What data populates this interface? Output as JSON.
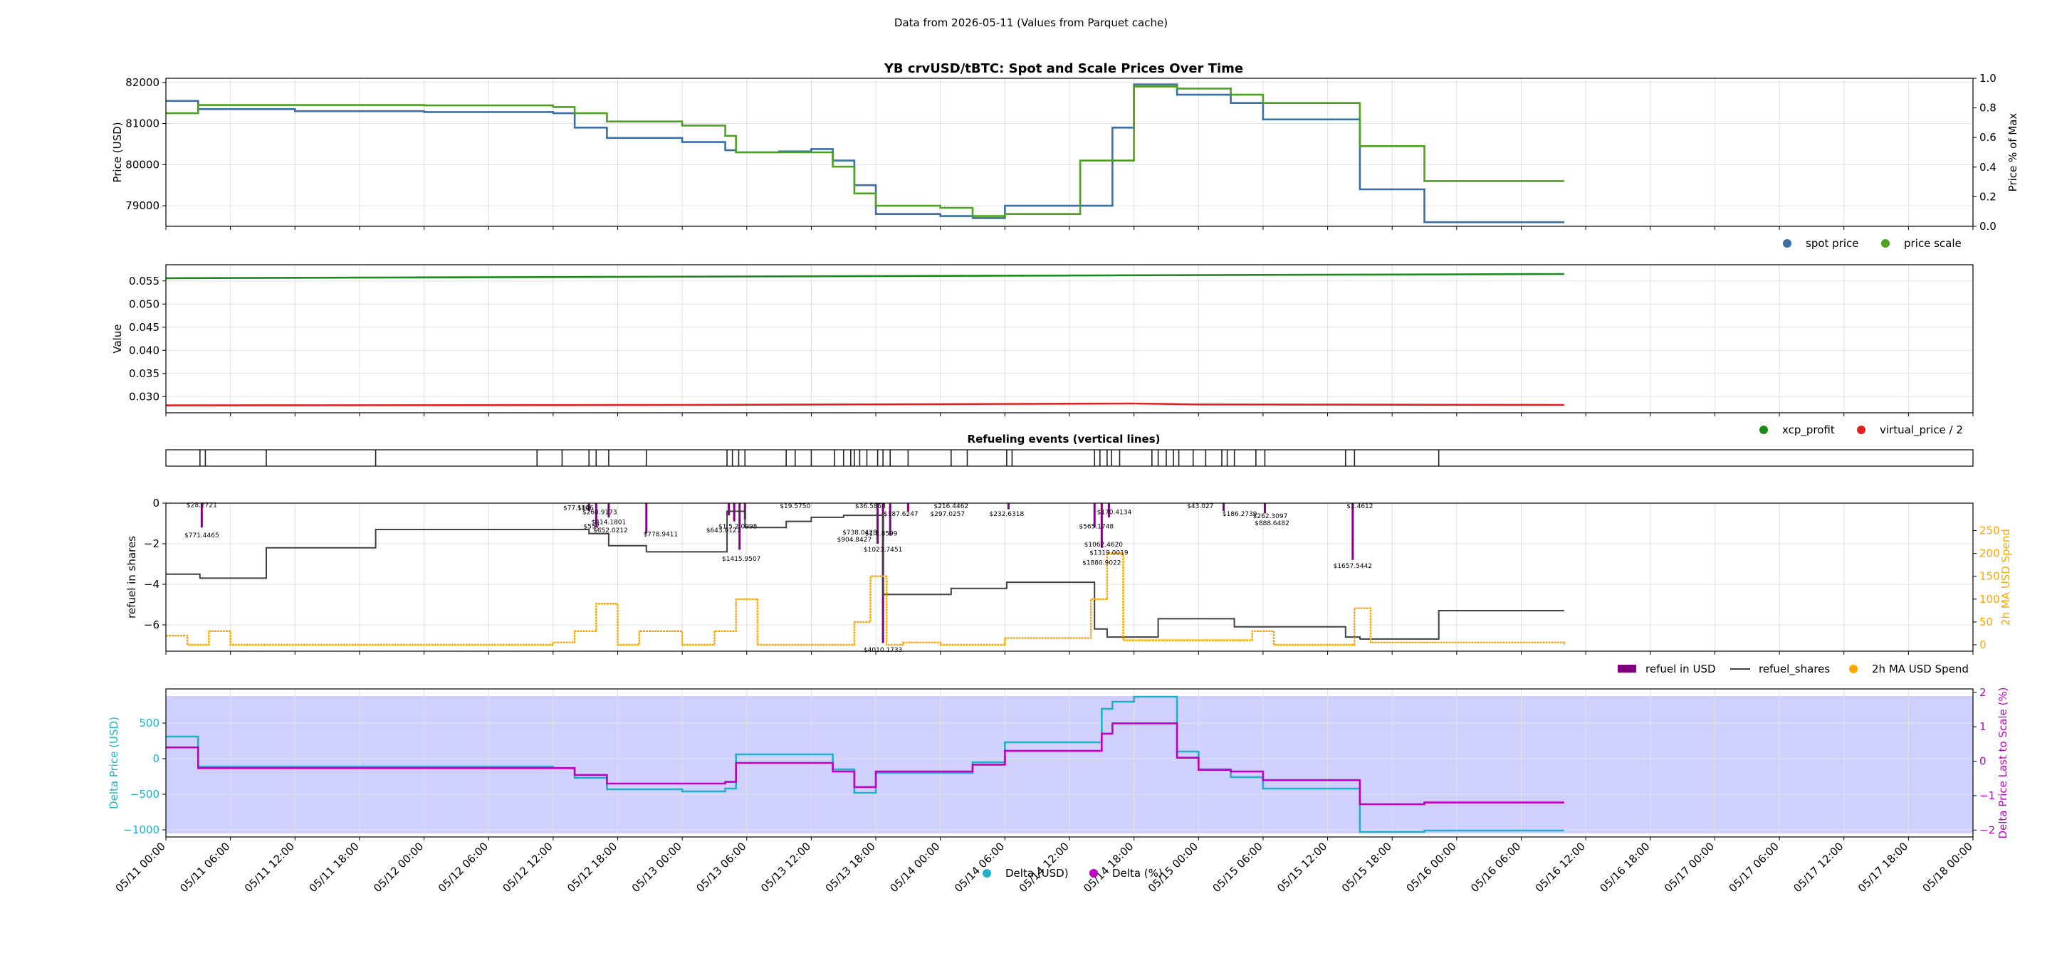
{
  "header": {
    "subtitle": "Data from 2026-05-11 (Values from Parquet cache)"
  },
  "colors": {
    "spot": "#3a6ea5",
    "scale": "#4ca21f",
    "xcp": "#1a8a1a",
    "virtual": "#e02020",
    "refuel_usd": "#800080",
    "refuel_shares": "#404040",
    "ma": "#ffa500",
    "delta_usd": "#20b0c8",
    "delta_pct": "#c000c0",
    "band": "#c8c8ff"
  },
  "x_axis": {
    "start": "2026-05-11 00:00",
    "end": "2026-05-18 00:00",
    "ticks": [
      "05/11 00:00",
      "05/11 06:00",
      "05/11 12:00",
      "05/11 18:00",
      "05/12 00:00",
      "05/12 06:00",
      "05/12 12:00",
      "05/12 18:00",
      "05/13 00:00",
      "05/13 06:00",
      "05/13 12:00",
      "05/13 18:00",
      "05/14 00:00",
      "05/14 06:00",
      "05/14 12:00",
      "05/14 18:00",
      "05/15 00:00",
      "05/15 06:00",
      "05/15 12:00",
      "05/15 18:00",
      "05/16 00:00",
      "05/16 06:00",
      "05/16 12:00",
      "05/16 18:00",
      "05/17 00:00",
      "05/17 06:00",
      "05/17 12:00",
      "05/17 18:00",
      "05/18 00:00"
    ]
  },
  "chart_data": [
    {
      "type": "line",
      "title": "YB crvUSD/tBTC: Spot and Scale Prices Over Time",
      "ylabel": "Price (USD)",
      "y2label": "Price % of Max",
      "ylim": [
        78500,
        82100
      ],
      "yticks": [
        79000,
        80000,
        81000,
        82000
      ],
      "y2ticks": [
        "0.0",
        "0.2",
        "0.4",
        "0.6",
        "0.8",
        "1.0"
      ],
      "legend": "bottom-right",
      "series": [
        {
          "name": "spot price",
          "style": "step",
          "x": [
            "2026-05-11 00:00",
            "2026-05-11 03:00",
            "2026-05-11 12:00",
            "2026-05-12 00:00",
            "2026-05-12 12:00",
            "2026-05-12 14:00",
            "2026-05-12 17:00",
            "2026-05-13 00:00",
            "2026-05-13 04:00",
            "2026-05-13 05:00",
            "2026-05-13 09:00",
            "2026-05-13 12:00",
            "2026-05-13 14:00",
            "2026-05-13 16:00",
            "2026-05-13 18:00",
            "2026-05-14 00:00",
            "2026-05-14 03:00",
            "2026-05-14 06:00",
            "2026-05-14 13:00",
            "2026-05-14 16:00",
            "2026-05-14 18:00",
            "2026-05-14 22:00",
            "2026-05-15 03:00",
            "2026-05-15 06:00",
            "2026-05-15 15:00",
            "2026-05-15 21:00",
            "2026-05-16 10:00"
          ],
          "y": [
            81550,
            81350,
            81300,
            81280,
            81250,
            80900,
            80650,
            80550,
            80350,
            80300,
            80320,
            80380,
            80100,
            79500,
            78800,
            78750,
            78700,
            79000,
            79000,
            80900,
            81950,
            81700,
            81500,
            81100,
            79400,
            78600,
            78600
          ]
        },
        {
          "name": "price scale",
          "style": "step",
          "x": [
            "2026-05-11 00:00",
            "2026-05-11 03:00",
            "2026-05-11 12:00",
            "2026-05-12 00:00",
            "2026-05-12 12:00",
            "2026-05-12 14:00",
            "2026-05-12 17:00",
            "2026-05-13 00:00",
            "2026-05-13 04:00",
            "2026-05-13 05:00",
            "2026-05-13 09:00",
            "2026-05-13 12:00",
            "2026-05-13 14:00",
            "2026-05-13 16:00",
            "2026-05-13 18:00",
            "2026-05-14 00:00",
            "2026-05-14 03:00",
            "2026-05-14 06:00",
            "2026-05-14 13:00",
            "2026-05-14 16:00",
            "2026-05-14 18:00",
            "2026-05-14 22:00",
            "2026-05-15 03:00",
            "2026-05-15 06:00",
            "2026-05-15 15:00",
            "2026-05-15 21:00",
            "2026-05-16 10:00"
          ],
          "y": [
            81250,
            81450,
            81450,
            81440,
            81400,
            81250,
            81050,
            80950,
            80700,
            80300,
            80300,
            80300,
            79950,
            79300,
            79000,
            78950,
            78750,
            78800,
            80100,
            80100,
            81900,
            81850,
            81700,
            81500,
            80450,
            79600,
            79600
          ]
        }
      ]
    },
    {
      "type": "line",
      "ylabel": "Value",
      "ylim": [
        0.0265,
        0.0585
      ],
      "yticks": [
        "0.030",
        "0.035",
        "0.040",
        "0.045",
        "0.050",
        "0.055"
      ],
      "legend": "bottom-right",
      "series": [
        {
          "name": "xcp_profit",
          "x": [
            "2026-05-11 00:00",
            "2026-05-16 10:00"
          ],
          "y": [
            0.0556,
            0.0565
          ]
        },
        {
          "name": "virtual_price / 2",
          "x": [
            "2026-05-11 00:00",
            "2026-05-13 00:00",
            "2026-05-14 18:00",
            "2026-05-15 00:00",
            "2026-05-16 10:00"
          ],
          "y": [
            0.0281,
            0.0282,
            0.0285,
            0.0283,
            0.0282
          ]
        }
      ]
    },
    {
      "type": "event_lines",
      "title": "Refueling events (vertical lines)",
      "events": [
        "2026-05-11 03:10",
        "2026-05-11 03:40",
        "2026-05-11 09:20",
        "2026-05-11 19:30",
        "2026-05-12 10:30",
        "2026-05-12 12:50",
        "2026-05-12 15:20",
        "2026-05-12 16:00",
        "2026-05-12 17:10",
        "2026-05-12 20:40",
        "2026-05-13 04:10",
        "2026-05-13 04:40",
        "2026-05-13 05:15",
        "2026-05-13 05:50",
        "2026-05-13 09:40",
        "2026-05-13 10:30",
        "2026-05-13 12:00",
        "2026-05-13 14:10",
        "2026-05-13 15:00",
        "2026-05-13 15:40",
        "2026-05-13 16:00",
        "2026-05-13 16:30",
        "2026-05-13 17:10",
        "2026-05-13 18:10",
        "2026-05-13 18:40",
        "2026-05-13 19:20",
        "2026-05-13 21:00",
        "2026-05-14 01:00",
        "2026-05-14 02:30",
        "2026-05-14 06:10",
        "2026-05-14 06:40",
        "2026-05-14 14:20",
        "2026-05-14 14:50",
        "2026-05-14 15:30",
        "2026-05-14 15:55",
        "2026-05-14 16:40",
        "2026-05-14 19:40",
        "2026-05-14 20:15",
        "2026-05-14 21:00",
        "2026-05-14 21:40",
        "2026-05-14 22:10",
        "2026-05-14 23:30",
        "2026-05-15 00:40",
        "2026-05-15 02:10",
        "2026-05-15 02:40",
        "2026-05-15 03:20",
        "2026-05-15 05:20",
        "2026-05-15 06:10",
        "2026-05-15 13:40",
        "2026-05-15 14:30",
        "2026-05-15 22:20"
      ]
    },
    {
      "type": "bar+line",
      "ylabel": "refuel in shares",
      "y2label": "2h MA USD Spend",
      "ylim": [
        -7.3,
        0
      ],
      "yticks": [
        "0",
        "−2",
        "−4",
        "−6"
      ],
      "y2lim": [
        -14,
        310
      ],
      "y2ticks": [
        "0",
        "50",
        "100",
        "150",
        "200",
        "250"
      ],
      "legend": "bottom-right",
      "series": [
        {
          "name": "refuel in USD",
          "kind": "bar",
          "x": [
            "2026-05-11 03:20",
            "2026-05-12 15:20",
            "2026-05-12 16:00",
            "2026-05-12 17:10",
            "2026-05-12 20:40",
            "2026-05-13 04:20",
            "2026-05-13 04:50",
            "2026-05-13 05:20",
            "2026-05-13 05:50",
            "2026-05-13 18:10",
            "2026-05-13 18:40",
            "2026-05-13 19:20",
            "2026-05-13 21:00",
            "2026-05-14 06:20",
            "2026-05-14 14:20",
            "2026-05-14 15:00",
            "2026-05-14 15:40",
            "2026-05-15 02:20",
            "2026-05-15 06:10",
            "2026-05-15 14:20"
          ],
          "y": [
            -1.2,
            -0.4,
            -1.2,
            -0.7,
            -1.5,
            -0.6,
            -0.9,
            -2.3,
            -0.8,
            -2.0,
            -6.9,
            -1.6,
            -0.4,
            -0.3,
            -1.2,
            -2.2,
            -0.7,
            -0.4,
            -0.5,
            -2.8
          ]
        },
        {
          "name": "refuel_shares",
          "kind": "step",
          "x": [
            "2026-05-11 00:00",
            "2026-05-11 03:10",
            "2026-05-11 09:20",
            "2026-05-11 19:30",
            "2026-05-12 15:20",
            "2026-05-12 17:10",
            "2026-05-12 20:40",
            "2026-05-13 04:10",
            "2026-05-13 05:50",
            "2026-05-13 09:40",
            "2026-05-13 12:00",
            "2026-05-13 15:00",
            "2026-05-13 18:40",
            "2026-05-14 01:00",
            "2026-05-14 06:10",
            "2026-05-14 14:20",
            "2026-05-14 15:30",
            "2026-05-14 20:15",
            "2026-05-15 03:20",
            "2026-05-15 13:40",
            "2026-05-15 15:00",
            "2026-05-15 22:20",
            "2026-05-16 10:00"
          ],
          "y": [
            -3.5,
            -3.7,
            -2.2,
            -1.3,
            -1.5,
            -2.1,
            -2.4,
            -0.4,
            -1.2,
            -0.9,
            -0.7,
            -0.6,
            -4.5,
            -4.2,
            -3.9,
            -6.2,
            -6.6,
            -5.7,
            -6.1,
            -6.6,
            -6.7,
            -5.3,
            -5.3
          ]
        },
        {
          "name": "2h MA USD Spend",
          "kind": "scatter",
          "x": [
            "2026-05-11 00:00",
            "2026-05-11 02:00",
            "2026-05-11 04:00",
            "2026-05-11 06:00",
            "2026-05-12 12:00",
            "2026-05-12 14:00",
            "2026-05-12 16:00",
            "2026-05-12 18:00",
            "2026-05-12 20:00",
            "2026-05-13 00:00",
            "2026-05-13 03:00",
            "2026-05-13 05:00",
            "2026-05-13 07:00",
            "2026-05-13 16:00",
            "2026-05-13 17:30",
            "2026-05-13 19:00",
            "2026-05-13 20:30",
            "2026-05-14 00:00",
            "2026-05-14 06:00",
            "2026-05-14 14:00",
            "2026-05-14 15:30",
            "2026-05-14 17:00",
            "2026-05-15 05:00",
            "2026-05-15 07:00",
            "2026-05-15 14:30",
            "2026-05-15 16:00",
            "2026-05-16 10:00"
          ],
          "y": [
            20,
            0,
            30,
            0,
            5,
            30,
            90,
            0,
            30,
            0,
            30,
            100,
            0,
            50,
            150,
            0,
            5,
            0,
            15,
            100,
            200,
            10,
            30,
            0,
            80,
            5,
            0
          ]
        }
      ],
      "annotations": [
        {
          "text": "$28.2721",
          "x": "2026-05-11 03:20",
          "y": -0.05
        },
        {
          "text": "$771.4465",
          "x": "2026-05-11 03:20",
          "y": -1.55
        },
        {
          "text": "$77.104",
          "x": "2026-05-12 14:10",
          "y": -0.2
        },
        {
          "text": "$106",
          "x": "2026-05-12 15:00",
          "y": -0.2
        },
        {
          "text": "$260.9173",
          "x": "2026-05-12 16:20",
          "y": -0.4
        },
        {
          "text": "$414.1801",
          "x": "2026-05-12 17:10",
          "y": -0.9
        },
        {
          "text": "$557.",
          "x": "2026-05-12 15:40",
          "y": -1.1
        },
        {
          "text": "$652.0212",
          "x": "2026-05-12 17:20",
          "y": -1.3
        },
        {
          "text": "$778.9411",
          "x": "2026-05-12 22:00",
          "y": -1.5
        },
        {
          "text": "$643.0127",
          "x": "2026-05-13 03:50",
          "y": -1.3
        },
        {
          "text": "$1415.9507",
          "x": "2026-05-13 05:30",
          "y": -2.7
        },
        {
          "text": "$1.5.2.0998",
          "x": "2026-05-13 05:10",
          "y": -1.1
        },
        {
          "text": "$19.5750",
          "x": "2026-05-13 10:30",
          "y": -0.1
        },
        {
          "text": "$36.5858",
          "x": "2026-05-13 17:30",
          "y": -0.1
        },
        {
          "text": "$187.6247",
          "x": "2026-05-13 20:20",
          "y": -0.5
        },
        {
          "text": "$216.4462",
          "x": "2026-05-14 01:00",
          "y": -0.1
        },
        {
          "text": "$297.0257",
          "x": "2026-05-14 00:40",
          "y": -0.5
        },
        {
          "text": "$232.6318",
          "x": "2026-05-14 06:10",
          "y": -0.5
        },
        {
          "text": "$738.0428",
          "x": "2026-05-13 16:30",
          "y": -1.4
        },
        {
          "text": "$904.8427",
          "x": "2026-05-13 16:00",
          "y": -1.75
        },
        {
          "text": "$1.8.8599",
          "x": "2026-05-13 18:30",
          "y": -1.45
        },
        {
          "text": "$1023.7451",
          "x": "2026-05-13 18:40",
          "y": -2.25
        },
        {
          "text": "$4010.1733",
          "x": "2026-05-13 18:40",
          "y": -7.2
        },
        {
          "text": "$170.4134",
          "x": "2026-05-14 16:10",
          "y": -0.4
        },
        {
          "text": "$565.1748",
          "x": "2026-05-14 14:30",
          "y": -1.1
        },
        {
          "text": "$1062.4620",
          "x": "2026-05-14 15:10",
          "y": -2.0
        },
        {
          "text": "$1319.0019",
          "x": "2026-05-14 15:40",
          "y": -2.4
        },
        {
          "text": "$1880.9022",
          "x": "2026-05-14 15:00",
          "y": -2.9
        },
        {
          "text": "$43.027",
          "x": "2026-05-15 00:10",
          "y": -0.1
        },
        {
          "text": "$186.2739",
          "x": "2026-05-15 03:50",
          "y": -0.5
        },
        {
          "text": "$262.3097",
          "x": "2026-05-15 06:40",
          "y": -0.6
        },
        {
          "text": "$888.6482",
          "x": "2026-05-15 06:50",
          "y": -0.95
        },
        {
          "text": "$1.4612",
          "x": "2026-05-15 15:00",
          "y": -0.1
        },
        {
          "text": "$1657.5442",
          "x": "2026-05-15 14:20",
          "y": -3.05
        }
      ]
    },
    {
      "type": "line",
      "ylabel": "Delta Price (USD)",
      "y2label": "Delta Price Last to Scale (%)",
      "ylim": [
        -1100,
        980
      ],
      "yticks": [
        "−1000",
        "−500",
        "0",
        "500"
      ],
      "y2lim": [
        -2.2,
        2.1
      ],
      "y2ticks": [
        "−2",
        "−1",
        "0",
        "1",
        "2"
      ],
      "legend": "bottom-center",
      "band": [
        -1050,
        880
      ],
      "series": [
        {
          "name": "Delta (USD)",
          "style": "step",
          "x": [
            "2026-05-11 00:00",
            "2026-05-11 03:00",
            "2026-05-12 12:00",
            "2026-05-12 14:00",
            "2026-05-12 17:00",
            "2026-05-13 00:00",
            "2026-05-13 04:00",
            "2026-05-13 05:00",
            "2026-05-13 12:00",
            "2026-05-13 14:00",
            "2026-05-13 16:00",
            "2026-05-13 18:00",
            "2026-05-14 00:00",
            "2026-05-14 03:00",
            "2026-05-14 06:00",
            "2026-05-14 13:00",
            "2026-05-14 15:00",
            "2026-05-14 16:00",
            "2026-05-14 18:00",
            "2026-05-14 22:00",
            "2026-05-15 00:00",
            "2026-05-15 03:00",
            "2026-05-15 06:00",
            "2026-05-15 15:00",
            "2026-05-15 21:00",
            "2026-05-16 10:00"
          ],
          "y": [
            310,
            -110,
            -130,
            -270,
            -430,
            -460,
            -420,
            60,
            60,
            -150,
            -480,
            -200,
            -200,
            -50,
            230,
            230,
            700,
            800,
            870,
            100,
            -150,
            -260,
            -420,
            -1030,
            -1010,
            -1010
          ]
        },
        {
          "name": "Delta (%)",
          "style": "step",
          "x": [
            "2026-05-11 00:00",
            "2026-05-11 03:00",
            "2026-05-12 12:00",
            "2026-05-12 14:00",
            "2026-05-12 17:00",
            "2026-05-13 00:00",
            "2026-05-13 04:00",
            "2026-05-13 05:00",
            "2026-05-13 12:00",
            "2026-05-13 14:00",
            "2026-05-13 16:00",
            "2026-05-13 18:00",
            "2026-05-14 00:00",
            "2026-05-14 03:00",
            "2026-05-14 06:00",
            "2026-05-14 13:00",
            "2026-05-14 15:00",
            "2026-05-14 16:00",
            "2026-05-14 18:00",
            "2026-05-14 22:00",
            "2026-05-15 00:00",
            "2026-05-15 03:00",
            "2026-05-15 06:00",
            "2026-05-15 15:00",
            "2026-05-15 21:00",
            "2026-05-16 10:00"
          ],
          "y": [
            0.4,
            -0.2,
            -0.2,
            -0.4,
            -0.65,
            -0.65,
            -0.6,
            -0.05,
            -0.05,
            -0.3,
            -0.75,
            -0.3,
            -0.3,
            -0.1,
            0.3,
            0.3,
            0.8,
            1.1,
            1.1,
            0.1,
            -0.25,
            -0.3,
            -0.55,
            -1.25,
            -1.2,
            -1.2
          ]
        }
      ]
    }
  ]
}
